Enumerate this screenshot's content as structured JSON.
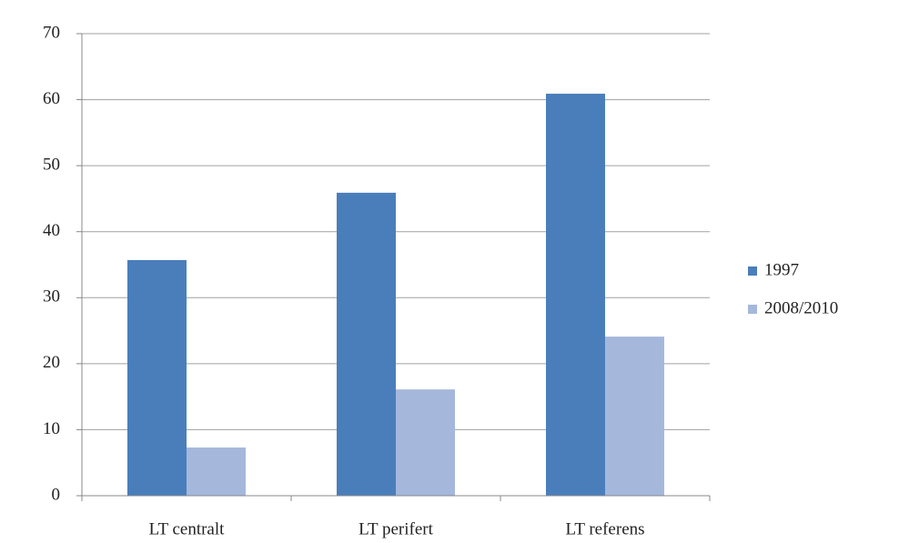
{
  "chart_data": {
    "type": "bar",
    "categories": [
      "LT centralt",
      "LT perifert",
      "LT referens"
    ],
    "series": [
      {
        "name": "1997",
        "color": "#4a7ebb",
        "values": [
          35.7,
          45.9,
          60.9
        ]
      },
      {
        "name": "2008/2010",
        "color": "#a5b8dc",
        "values": [
          7.3,
          16.1,
          24.1
        ]
      }
    ],
    "ylim": [
      0,
      70
    ],
    "yticks": [
      0,
      10,
      20,
      30,
      40,
      50,
      60,
      70
    ],
    "grid": true,
    "legend": "right"
  }
}
